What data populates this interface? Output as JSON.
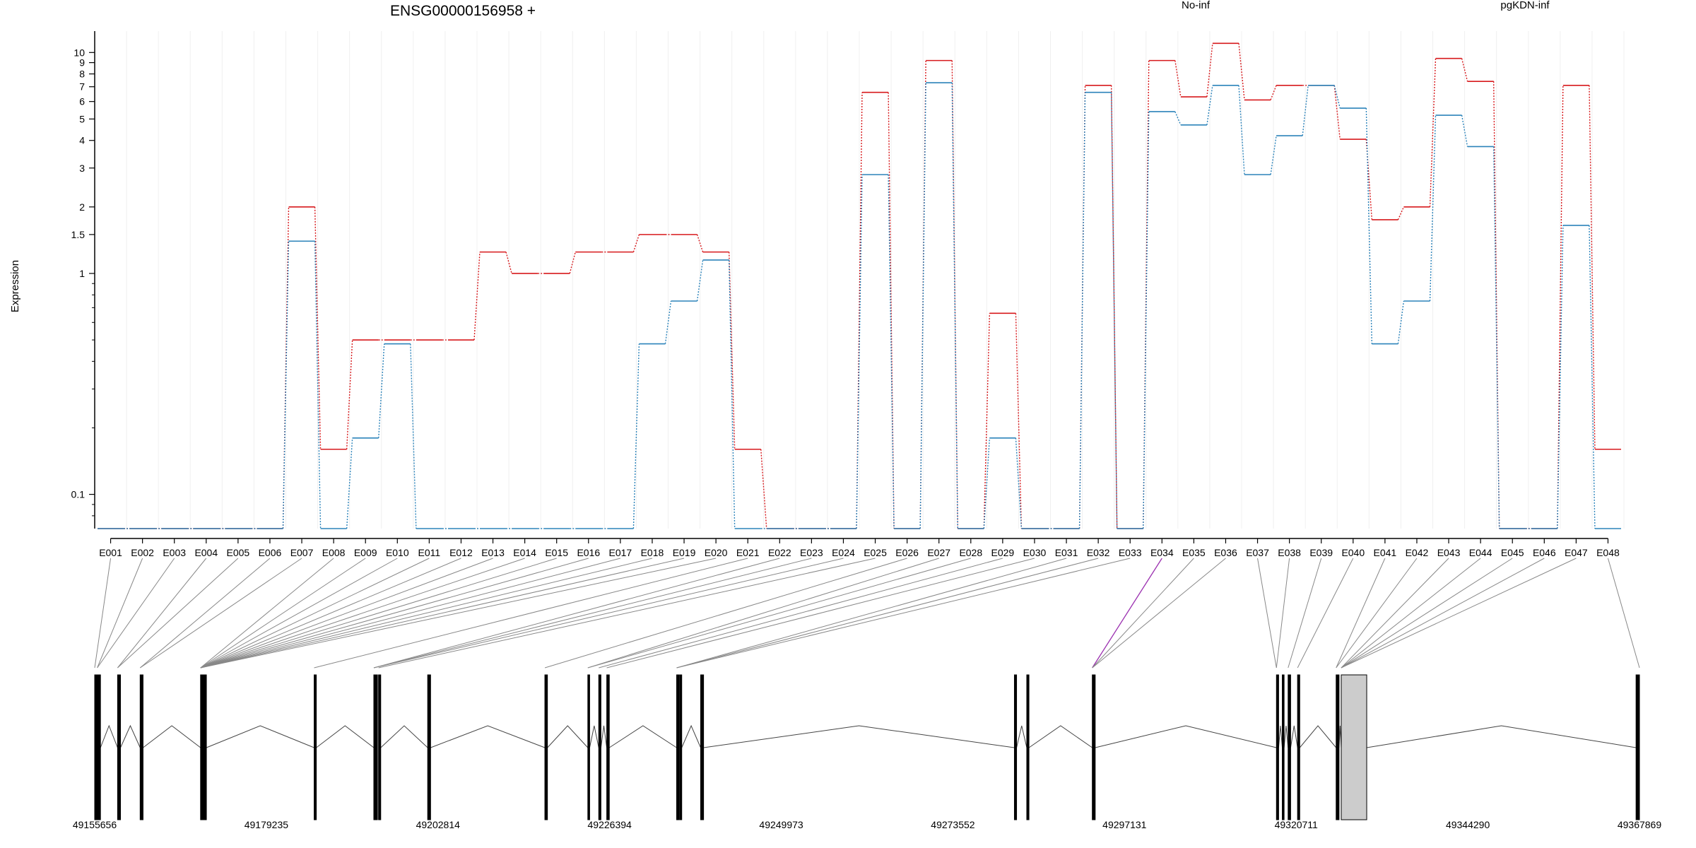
{
  "chart_data": {
    "type": "line",
    "title": "ENSG00000156958 +",
    "ylabel": "Expression",
    "xlabel": "",
    "y_scale": "log",
    "ylim": [
      0.07,
      12.5
    ],
    "y_ticks": [
      0.1,
      1,
      1.5,
      2,
      3,
      4,
      5,
      6,
      7,
      8,
      9,
      10
    ],
    "grid": "vertical-light",
    "legend_placement": "top-right",
    "categories": [
      "E001",
      "E002",
      "E003",
      "E004",
      "E005",
      "E006",
      "E007",
      "E008",
      "E009",
      "E010",
      "E011",
      "E012",
      "E013",
      "E014",
      "E015",
      "E016",
      "E017",
      "E018",
      "E019",
      "E020",
      "E021",
      "E022",
      "E023",
      "E024",
      "E025",
      "E026",
      "E027",
      "E028",
      "E029",
      "E030",
      "E031",
      "E032",
      "E033",
      "E034",
      "E035",
      "E036",
      "E037",
      "E038",
      "E039",
      "E040",
      "E041",
      "E042",
      "E043",
      "E044",
      "E045",
      "E046",
      "E047",
      "E048"
    ],
    "series": [
      {
        "name": "No-inf",
        "color": "#d7191c",
        "values": [
          0.07,
          0.07,
          0.07,
          0.07,
          0.07,
          0.07,
          2.0,
          0.16,
          0.5,
          0.5,
          0.5,
          0.5,
          1.25,
          1.0,
          1.0,
          1.25,
          1.25,
          1.5,
          1.5,
          1.25,
          0.16,
          0.07,
          0.07,
          0.07,
          6.6,
          0.07,
          9.2,
          0.07,
          0.66,
          0.07,
          0.07,
          7.1,
          0.07,
          9.2,
          6.3,
          11.0,
          6.1,
          7.1,
          7.1,
          4.05,
          1.75,
          2.0,
          9.4,
          7.4,
          0.07,
          0.07,
          7.1,
          0.16
        ]
      },
      {
        "name": "pgKDN-inf",
        "color": "#2b83ba",
        "values": [
          0.07,
          0.07,
          0.07,
          0.07,
          0.07,
          0.07,
          1.4,
          0.07,
          0.18,
          0.48,
          0.07,
          0.07,
          0.07,
          0.07,
          0.07,
          0.07,
          0.07,
          0.48,
          0.75,
          1.15,
          0.07,
          0.07,
          0.07,
          0.07,
          2.8,
          0.07,
          7.3,
          0.07,
          0.18,
          0.07,
          0.07,
          6.6,
          0.07,
          5.4,
          4.7,
          7.1,
          2.8,
          4.2,
          7.1,
          5.6,
          0.48,
          0.75,
          5.2,
          3.75,
          0.07,
          0.07,
          1.65,
          0.07
        ]
      }
    ],
    "gene_model": {
      "coordinate_ticks": [
        "49155656",
        "49179235",
        "49202814",
        "49226394",
        "49249973",
        "49273552",
        "49297131",
        "49320711",
        "49344290",
        "49367869"
      ],
      "range": [
        49155656,
        49367869
      ],
      "exons": [
        [
          49155656,
          49156000
        ],
        [
          49156010,
          49156450
        ],
        [
          49158800,
          49159200
        ],
        [
          49161900,
          49162300
        ],
        [
          49170200,
          49170700
        ],
        [
          49170750,
          49171000
        ],
        [
          49185800,
          49186100
        ],
        [
          49194000,
          49194500
        ],
        [
          49194650,
          49194950
        ],
        [
          49201400,
          49201800
        ],
        [
          49217500,
          49217850
        ],
        [
          49223400,
          49223650
        ],
        [
          49224900,
          49225200
        ],
        [
          49226000,
          49226350
        ],
        [
          49235600,
          49235900
        ],
        [
          49236000,
          49236300
        ],
        [
          49238900,
          49239300
        ],
        [
          49282000,
          49282300
        ],
        [
          49283700,
          49284000
        ],
        [
          49292700,
          49293100
        ],
        [
          49318000,
          49318300
        ],
        [
          49318800,
          49319050
        ],
        [
          49319600,
          49319950
        ],
        [
          49320900,
          49321200
        ],
        [
          49326200,
          49326600
        ],
        [
          49326900,
          49330400
        ],
        [
          49367400,
          49367869
        ]
      ],
      "highlight_exon": "E034",
      "connector_color": "#888888",
      "highlight_color": "#9b30b0",
      "exon_fill": "#cccccc"
    }
  }
}
